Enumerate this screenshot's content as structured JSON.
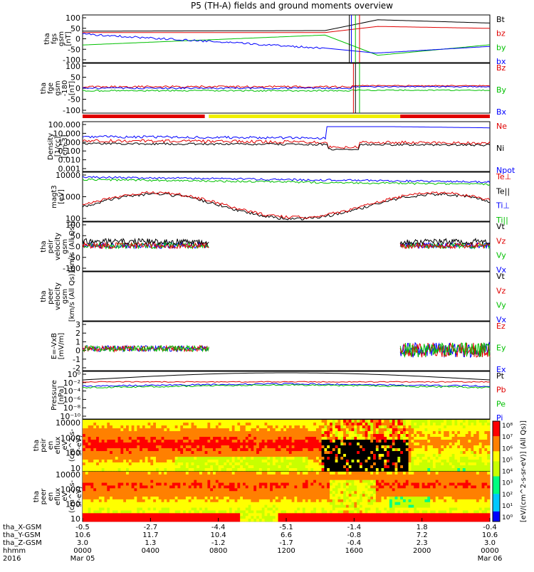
{
  "title": "P5 (TH-A) fields and ground moments overview",
  "colors": {
    "black": "#000000",
    "red": "#e00000",
    "green": "#00c000",
    "blue": "#0000ff",
    "yellow": "#f0f000",
    "stripe_red": "#e00000"
  },
  "chart_data": [
    {
      "type": "line",
      "id": "p1",
      "ylabel": [
        "tha",
        "fgs",
        "gsm",
        "[nT]"
      ],
      "yticks": [
        "100",
        "50",
        "0",
        "-50",
        "-100"
      ],
      "ylim": [
        -100,
        100
      ],
      "legend": [
        "Bt",
        "bz",
        "by",
        "bx"
      ]
    },
    {
      "type": "line",
      "id": "p2",
      "ylabel": [
        "tha",
        "fge",
        "gsm",
        "-180",
        "[nT]"
      ],
      "yticks": [
        "100",
        "50",
        "0",
        "-50",
        "-100"
      ],
      "ylim": [
        -120,
        110
      ],
      "legend": [
        "Bz",
        "By",
        "Bx"
      ]
    },
    {
      "type": "bar",
      "id": "p3",
      "description_colors": [
        "red",
        "yellow",
        "red"
      ]
    },
    {
      "type": "line",
      "id": "p4",
      "ylabel": [
        "Density",
        "[1/cc]",
        "[cm-3]"
      ],
      "yticks": [
        "100.000",
        "10.000",
        "1.000",
        "0.100",
        "0.010",
        "0.001"
      ],
      "yscale": "log",
      "legend": [
        "Ne",
        "Ni",
        "Npot"
      ]
    },
    {
      "type": "line",
      "id": "p5",
      "ylabel": [
        "magt3",
        "[eV]"
      ],
      "yticks": [
        "10000",
        "1000",
        "100"
      ],
      "yscale": "log",
      "legend": [
        "Te⊥",
        "Te||",
        "Ti⊥",
        "Ti||"
      ]
    },
    {
      "type": "line",
      "id": "p6",
      "ylabel": [
        "tha",
        "peir",
        "velocity",
        "gsm",
        "[km/s (All Qs)]"
      ],
      "yticks": [
        "100",
        "50",
        "0",
        "-50",
        "-100"
      ],
      "ylim": [
        -100,
        100
      ],
      "legend": [
        "Vt",
        "Vz",
        "Vy",
        "Vx"
      ]
    },
    {
      "type": "line",
      "id": "p7",
      "ylabel": [
        "tha",
        "peer",
        "velocity",
        "gsm",
        "[km/s (All Qs)]"
      ],
      "yticks": [],
      "legend": [
        "Vt",
        "Vz",
        "Vy",
        "Vx"
      ]
    },
    {
      "type": "line",
      "id": "p8",
      "ylabel": [
        "E=-VxB",
        "[mV/m]"
      ],
      "yticks": [
        "3",
        "2",
        "1",
        "0",
        "-1",
        "-2"
      ],
      "ylim": [
        -2,
        3
      ],
      "legend": [
        "Ez",
        "Ey",
        "Ex"
      ]
    },
    {
      "type": "line",
      "id": "p9",
      "ylabel": [
        "Pressure",
        "[nPa]"
      ],
      "yticks": [
        "10⁰",
        "10⁻²",
        "10⁻⁴",
        "10⁻⁶",
        "10⁻⁸",
        "10⁻¹⁰"
      ],
      "yscale": "log",
      "legend": [
        "Pt",
        "Pb",
        "Pe",
        "Pi"
      ]
    },
    {
      "type": "heatmap",
      "id": "p10",
      "ylabel": [
        "tha",
        "peir",
        "en",
        "eflux",
        "eV",
        "(cm^2-s-",
        "sr-eV)"
      ],
      "yticks": [
        "10000",
        "1000",
        "100",
        "10"
      ],
      "yscale": "log"
    },
    {
      "type": "heatmap",
      "id": "p11",
      "ylabel": [
        "tha",
        "peer",
        "en",
        "eflux",
        "eV",
        "(cm^2-s-",
        "sr-eV)"
      ],
      "yticks": [
        "10000",
        "1000",
        "100",
        "10"
      ],
      "yscale": "log"
    }
  ],
  "colorbar": {
    "ticks": [
      "10⁸",
      "10⁷",
      "10⁶",
      "10⁵",
      "10⁴",
      "10³",
      "10²",
      "10¹",
      "10⁰"
    ],
    "label": "[eV/(cm^2-s-sr-eV)] (All Qs)]"
  },
  "xaxis": {
    "row_labels": [
      "tha_X-GSM",
      "tha_Y-GSM",
      "tha_Z-GSM",
      "hhmm",
      "2016"
    ],
    "columns": [
      {
        "x": "-0.5",
        "y": "10.6",
        "z": "3.0",
        "t": "0000",
        "d": "Mar 05"
      },
      {
        "x": "-2.7",
        "y": "11.7",
        "z": "1.3",
        "t": "0400",
        "d": ""
      },
      {
        "x": "-4.4",
        "y": "10.4",
        "z": "-1.2",
        "t": "0800",
        "d": ""
      },
      {
        "x": "-5.1",
        "y": "6.6",
        "z": "-1.7",
        "t": "1200",
        "d": ""
      },
      {
        "x": "-1.4",
        "y": "-0.8",
        "z": "-0.4",
        "t": "1600",
        "d": ""
      },
      {
        "x": "1.8",
        "y": "7.2",
        "z": "2.3",
        "t": "2000",
        "d": ""
      },
      {
        "x": "-0.4",
        "y": "10.6",
        "z": "3.0",
        "t": "0000",
        "d": "Mar 06"
      }
    ]
  }
}
